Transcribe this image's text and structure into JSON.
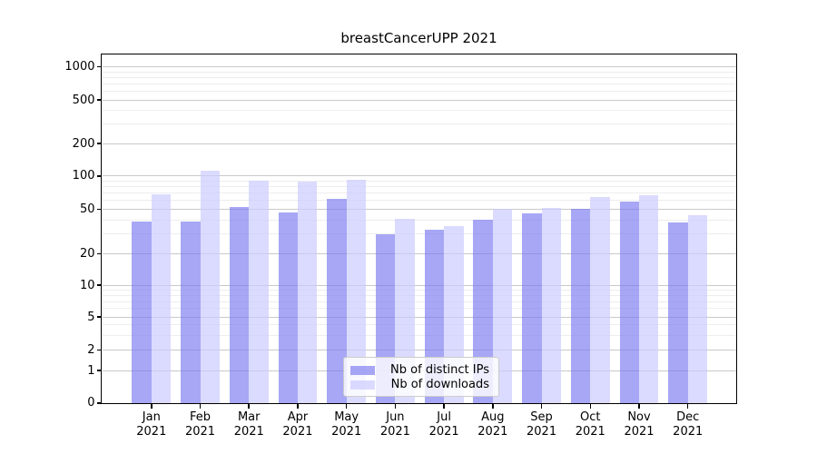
{
  "title": "breastCancerUPP 2021",
  "chart_data": {
    "type": "bar",
    "title": "breastCancerUPP 2021",
    "x_months": [
      "Jan",
      "Feb",
      "Mar",
      "Apr",
      "May",
      "Jun",
      "Jul",
      "Aug",
      "Sep",
      "Oct",
      "Nov",
      "Dec"
    ],
    "x_year": "2021",
    "categories": [
      "Jan 2021",
      "Feb 2021",
      "Mar 2021",
      "Apr 2021",
      "May 2021",
      "Jun 2021",
      "Jul 2021",
      "Aug 2021",
      "Sep 2021",
      "Oct 2021",
      "Nov 2021",
      "Dec 2021"
    ],
    "series": [
      {
        "name": "Nb of distinct IPs",
        "color": "rgba(120,120,240,0.65)",
        "values": [
          39,
          39,
          52,
          47,
          62,
          30,
          33,
          40,
          46,
          50,
          58,
          38
        ]
      },
      {
        "name": "Nb of downloads",
        "color": "rgba(204,204,255,0.70)",
        "values": [
          68,
          111,
          91,
          89,
          93,
          41,
          35,
          50,
          51,
          64,
          67,
          44
        ]
      }
    ],
    "y_scale": "symlog",
    "ylim": [
      0,
      1000
    ],
    "y_major_ticks": [
      0,
      1,
      2,
      5,
      10,
      20,
      50,
      100,
      200,
      500,
      1000
    ],
    "y_minor_ticks": [
      3,
      4,
      6,
      7,
      8,
      9,
      30,
      40,
      60,
      70,
      80,
      90,
      300,
      400,
      600,
      700,
      800,
      900
    ],
    "grid": true,
    "legend_position": "lower center"
  },
  "legend": {
    "items": [
      "Nb of distinct IPs",
      "Nb of downloads"
    ]
  },
  "colors": {
    "background": "#ffffff",
    "axis": "#000000",
    "major_grid": "#c9c9c9",
    "minor_grid": "#ededed",
    "legend_border": "#cccccc",
    "bar_ips": "rgba(120,120,240,0.65)",
    "bar_downloads": "rgba(204,204,255,0.70)"
  }
}
